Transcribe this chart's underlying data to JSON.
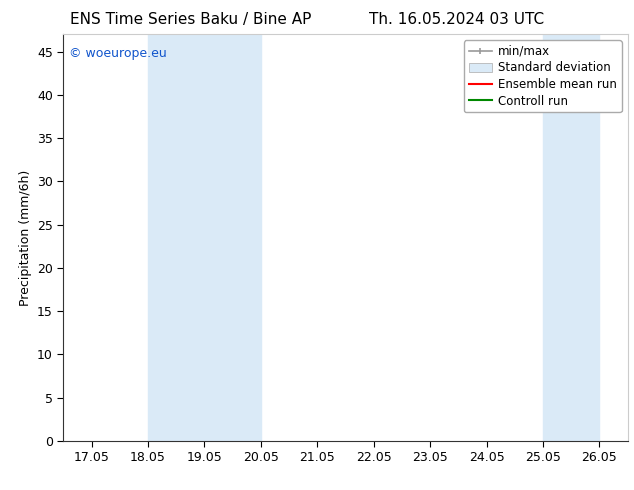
{
  "title_left": "ENS Time Series Baku / Bine AP",
  "title_right": "Th. 16.05.2024 03 UTC",
  "ylabel": "Precipitation (mm/6h)",
  "xlabel": "",
  "ylim": [
    0,
    47
  ],
  "yticks": [
    0,
    5,
    10,
    15,
    20,
    25,
    30,
    35,
    40,
    45
  ],
  "xtick_labels": [
    "17.05",
    "18.05",
    "19.05",
    "20.05",
    "21.05",
    "22.05",
    "23.05",
    "24.05",
    "25.05",
    "26.05"
  ],
  "xtick_positions": [
    0,
    1,
    2,
    3,
    4,
    5,
    6,
    7,
    8,
    9
  ],
  "xmin": -0.5,
  "xmax": 9.5,
  "shaded_regions": [
    {
      "xmin": 1.0,
      "xmax": 3.0,
      "color": "#daeaf7"
    },
    {
      "xmin": 8.0,
      "xmax": 9.0,
      "color": "#daeaf7"
    }
  ],
  "background_color": "#ffffff",
  "watermark_text": "© woeurope.eu",
  "watermark_color": "#1155cc",
  "legend_entries": [
    {
      "label": "min/max",
      "color": "#aaaaaa",
      "lw": 1.2
    },
    {
      "label": "Standard deviation",
      "color": "#ccddee",
      "lw": 8
    },
    {
      "label": "Ensemble mean run",
      "color": "#ff0000",
      "lw": 1.5
    },
    {
      "label": "Controll run",
      "color": "#008800",
      "lw": 1.5
    }
  ],
  "title_fontsize": 11,
  "tick_fontsize": 9,
  "legend_fontsize": 8.5,
  "ylabel_fontsize": 9
}
